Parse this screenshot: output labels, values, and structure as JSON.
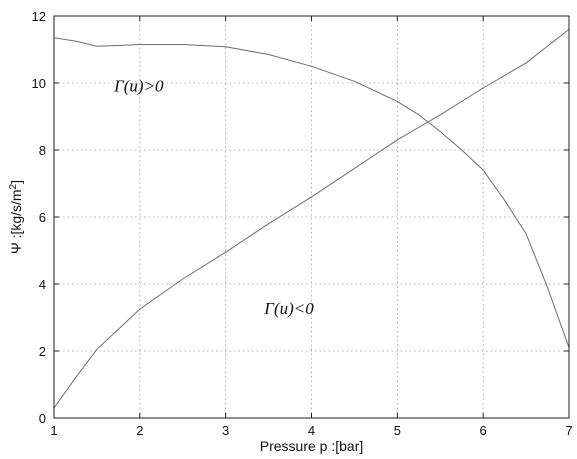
{
  "chart_data": {
    "type": "line",
    "xlabel": "Pressure p :[bar]",
    "ylabel": "Ψ :[kg/s/m2]",
    "xlim": [
      1,
      7
    ],
    "ylim": [
      0,
      12
    ],
    "xticks": [
      "1",
      "2",
      "3",
      "4",
      "5",
      "6",
      "7"
    ],
    "yticks": [
      "0",
      "2",
      "4",
      "6",
      "8",
      "10",
      "12"
    ],
    "grid": true,
    "series": [
      {
        "name": "",
        "x": [
          1.0,
          1.25,
          1.5,
          1.75,
          2.0,
          2.5,
          3.0,
          3.5,
          4.0,
          4.5,
          5.0,
          5.25,
          5.5,
          5.75,
          6.0,
          6.25,
          6.5,
          6.75,
          7.0
        ],
        "y": [
          11.35,
          11.25,
          11.1,
          11.12,
          11.15,
          11.15,
          11.08,
          10.85,
          10.5,
          10.05,
          9.45,
          9.05,
          8.55,
          8.0,
          7.4,
          6.5,
          5.5,
          3.9,
          2.1
        ]
      },
      {
        "name": "",
        "x": [
          1.0,
          1.25,
          1.5,
          1.75,
          2.0,
          2.5,
          3.0,
          3.5,
          4.0,
          4.5,
          5.0,
          5.5,
          6.0,
          6.5,
          7.0
        ],
        "y": [
          0.3,
          1.2,
          2.05,
          2.65,
          3.25,
          4.15,
          4.95,
          5.8,
          6.6,
          7.45,
          8.3,
          9.05,
          9.85,
          10.6,
          11.6
        ]
      }
    ],
    "annotations": [
      {
        "text": "Γ(u)>0",
        "x": 1.7,
        "y": 9.75
      },
      {
        "text": "Γ(u)<0",
        "x": 3.45,
        "y": 3.1
      }
    ]
  }
}
